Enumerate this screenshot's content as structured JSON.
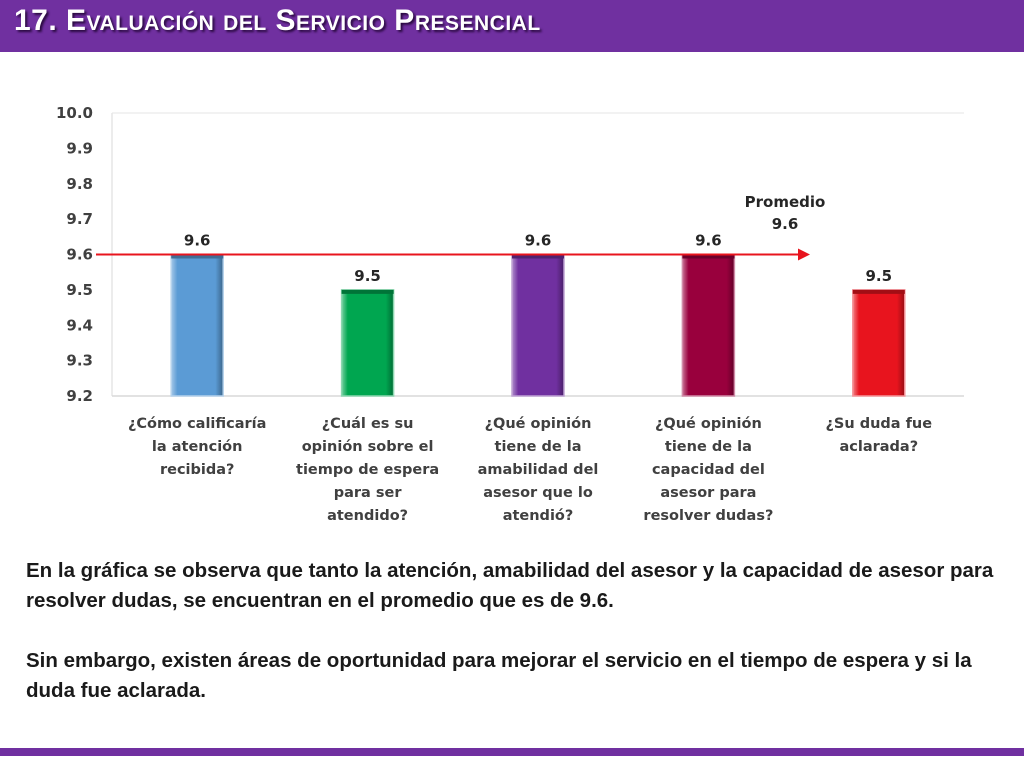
{
  "header": {
    "title": "17. Evaluación del Servicio Presencial"
  },
  "chart_data": {
    "type": "bar",
    "categories": [
      [
        "¿Cómo calificaría",
        "la atención",
        "recibida?"
      ],
      [
        "¿Cuál es su",
        "opinión sobre el",
        "tiempo de espera",
        "para ser",
        "atendido?"
      ],
      [
        "¿Qué opinión",
        "tiene de la",
        "amabilidad del",
        "asesor que lo",
        "atendió?"
      ],
      [
        "¿Qué opinión",
        "tiene de la",
        "capacidad del",
        "asesor para",
        "resolver dudas?"
      ],
      [
        "¿Su duda fue",
        "aclarada?"
      ]
    ],
    "values": [
      9.6,
      9.5,
      9.6,
      9.6,
      9.5
    ],
    "value_labels": [
      "9.6",
      "9.5",
      "9.6",
      "9.6",
      "9.5"
    ],
    "bar_colors": [
      "#5b9bd5",
      "#00a650",
      "#7030a0",
      "#99003d",
      "#e8141e"
    ],
    "ylim": [
      9.2,
      10.0
    ],
    "yticks": [
      "9.2",
      "9.3",
      "9.4",
      "9.5",
      "9.6",
      "9.7",
      "9.8",
      "9.9",
      "10.0"
    ],
    "grid": false,
    "reference_line": {
      "value": 9.6,
      "color": "#e8141e",
      "label_lines": [
        "Promedio",
        "9.6"
      ]
    }
  },
  "summary": {
    "paragraph1": "En la gráfica se observa que tanto la atención, amabilidad del asesor y la capacidad de asesor para resolver dudas, se encuentran en el promedio que es de 9.6.",
    "paragraph2": "Sin embargo, existen áreas de oportunidad para mejorar el servicio en el tiempo de espera y si la duda fue aclarada."
  },
  "colors": {
    "accent": "#7030a0"
  }
}
